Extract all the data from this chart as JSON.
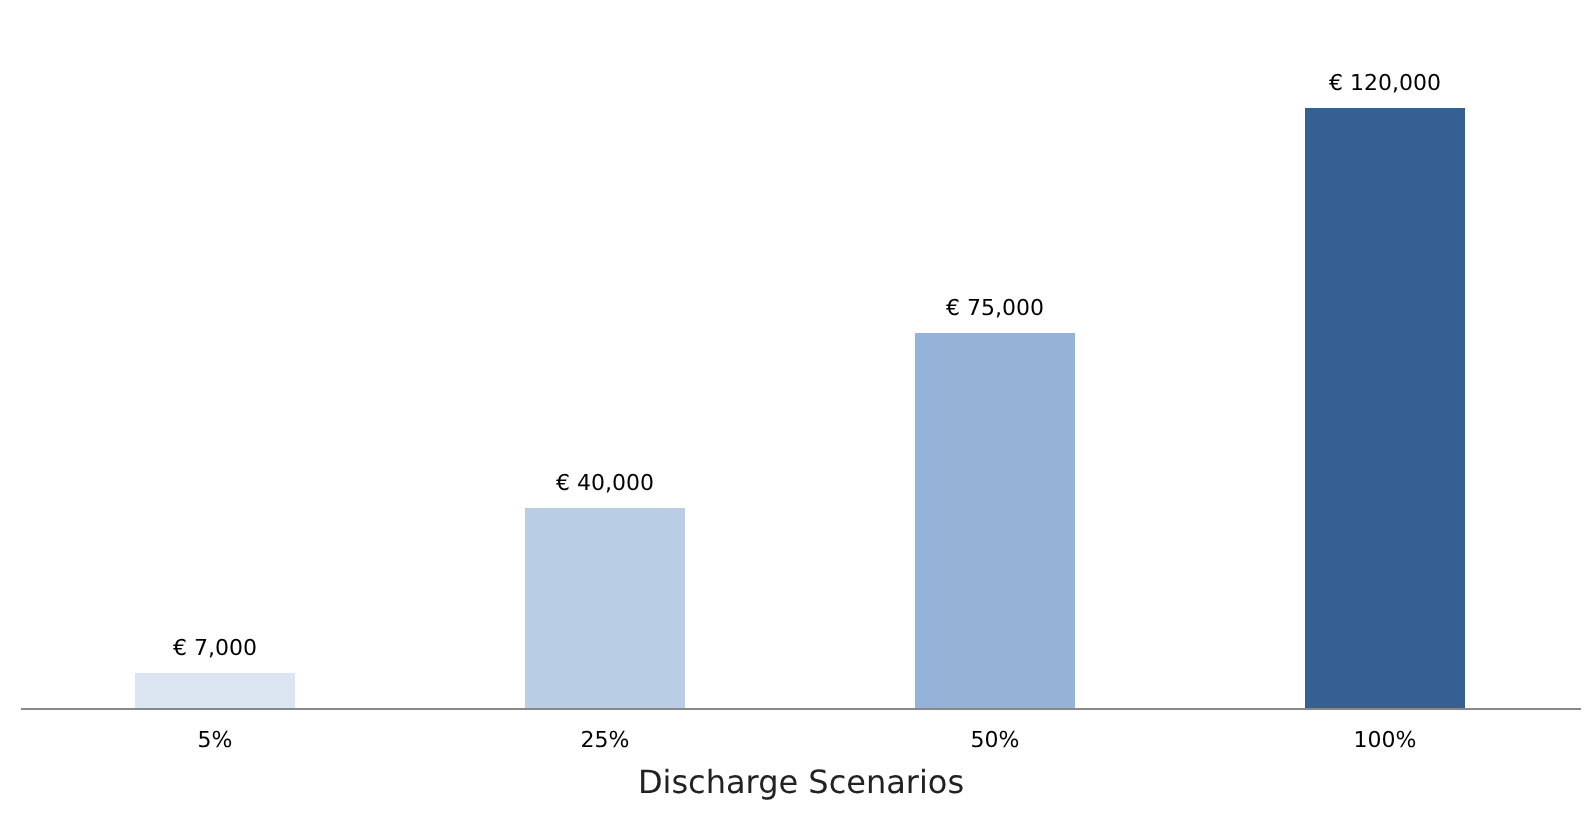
{
  "chart_data": {
    "type": "bar",
    "xlabel": "Discharge Scenarios",
    "categories": [
      "5%",
      "25%",
      "50%",
      "100%"
    ],
    "values": [
      7000,
      40000,
      75000,
      120000
    ],
    "colors": [
      "#dce6f2",
      "#b9cde5",
      "#95b3d7",
      "#376092"
    ],
    "value_labels": [
      "€ 7,000",
      "€ 40,000",
      "€ 75,000",
      "€ 120,000"
    ],
    "grid": false,
    "legend": false
  }
}
